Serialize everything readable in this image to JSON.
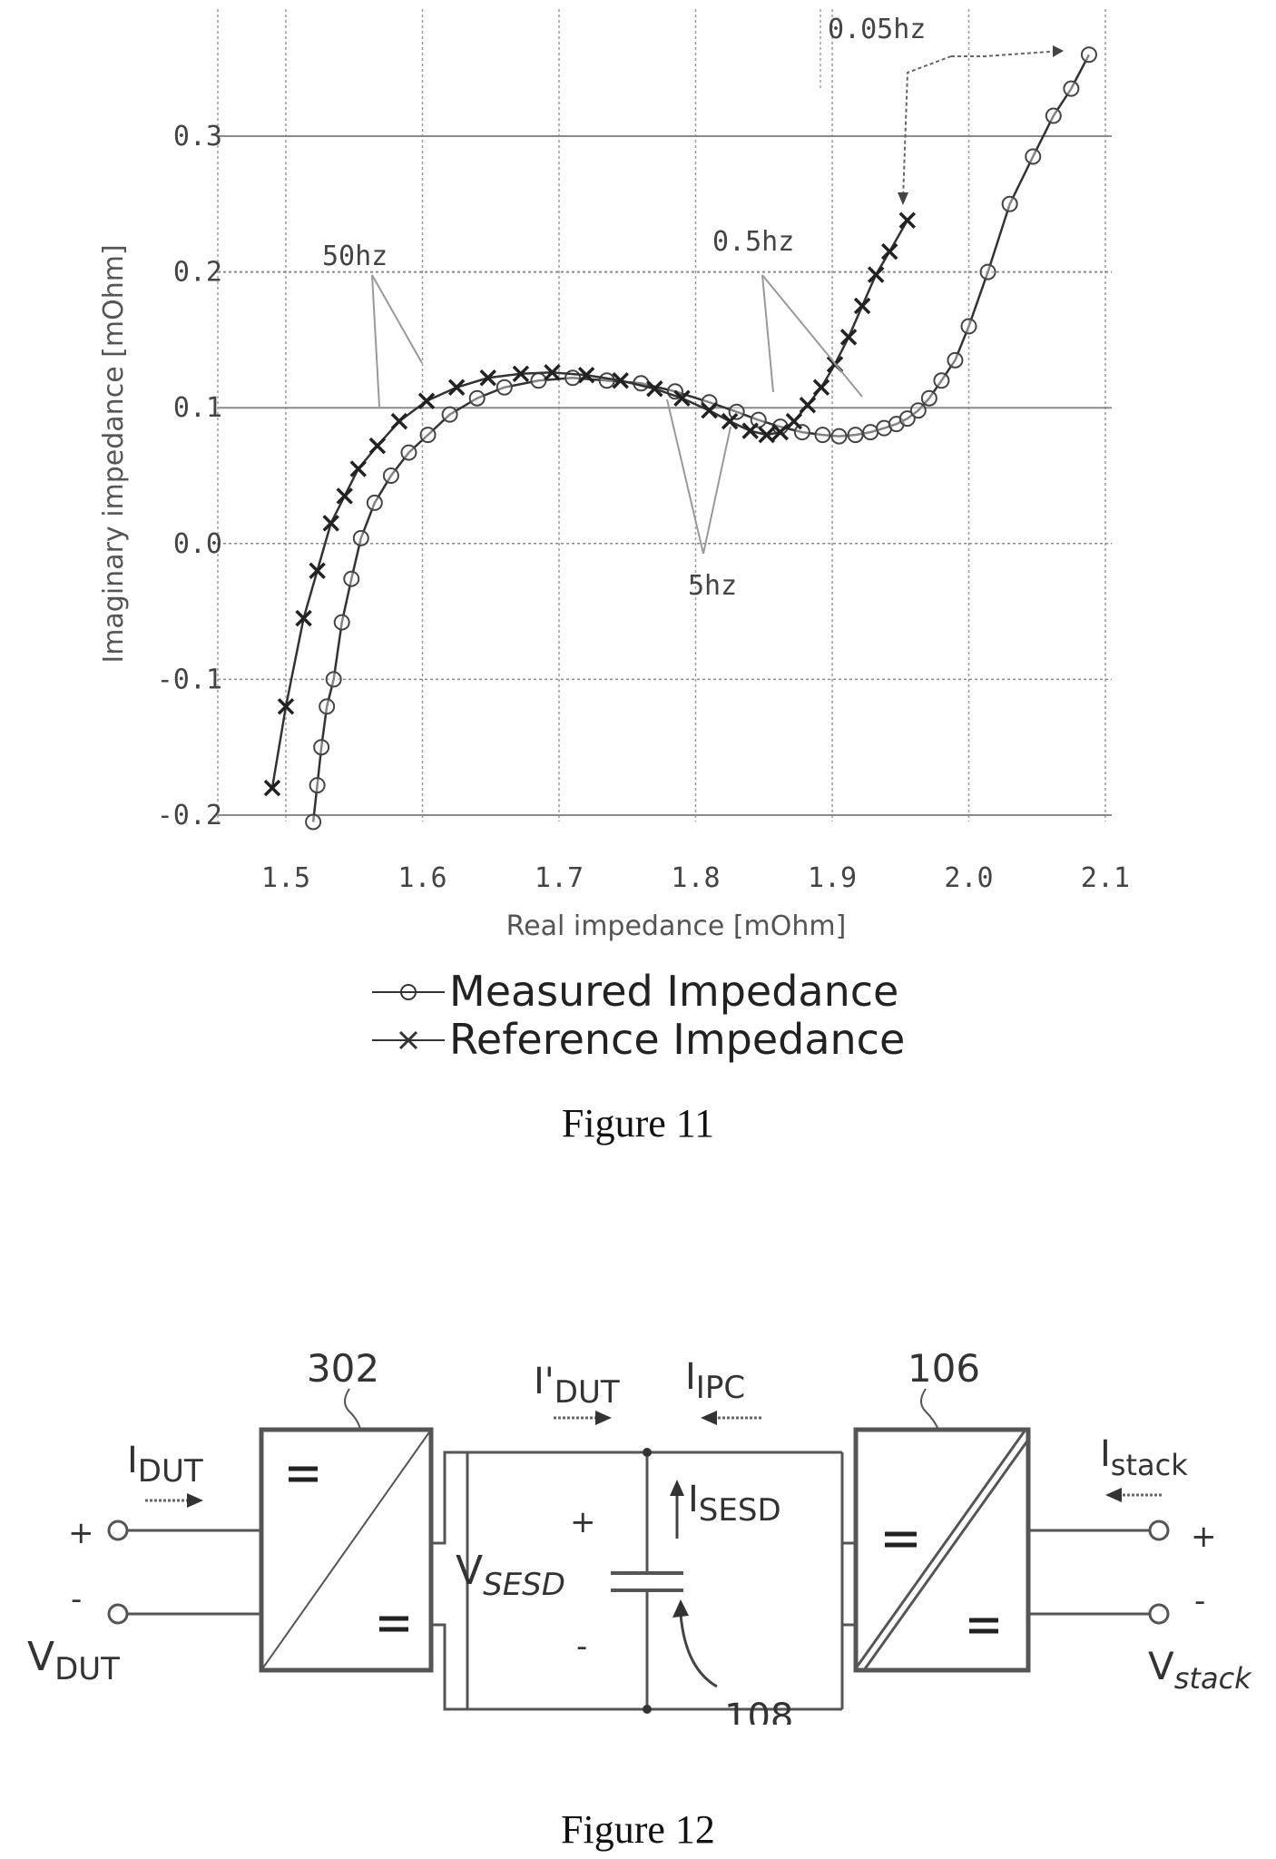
{
  "figure11": {
    "caption": "Figure 11",
    "chart_data": {
      "type": "scatter",
      "xlabel": "Real impedance [mOhm]",
      "ylabel": "Imaginary impedance [mOhm]",
      "xlim": [
        1.5,
        2.1
      ],
      "ylim": [
        -0.2,
        0.35
      ],
      "xticks": [
        1.5,
        1.6,
        1.7,
        1.8,
        1.9,
        2.0,
        2.1
      ],
      "xtick_labels": [
        "1.5",
        "1.6",
        "1.7",
        "1.8",
        "1.9",
        "2.0",
        "2.1"
      ],
      "yticks": [
        -0.2,
        -0.1,
        0.0,
        0.1,
        0.2,
        0.3
      ],
      "ytick_labels": [
        "-0.2",
        "-0.1",
        "0.0",
        "0.1",
        "0.2",
        "0.3"
      ],
      "grid": true,
      "legend_position": "bottom",
      "series": [
        {
          "name": "Measured Impedance",
          "marker": "circle",
          "x": [
            1.52,
            1.523,
            1.526,
            1.53,
            1.535,
            1.541,
            1.548,
            1.555,
            1.565,
            1.577,
            1.59,
            1.604,
            1.62,
            1.64,
            1.66,
            1.685,
            1.71,
            1.735,
            1.76,
            1.785,
            1.81,
            1.83,
            1.846,
            1.862,
            1.878,
            1.893,
            1.905,
            1.917,
            1.928,
            1.938,
            1.947,
            1.955,
            1.963,
            1.971,
            1.98,
            1.99,
            2.0,
            2.014,
            2.03,
            2.047,
            2.062,
            2.075,
            2.088
          ],
          "y": [
            -0.205,
            -0.178,
            -0.15,
            -0.12,
            -0.1,
            -0.058,
            -0.026,
            0.004,
            0.03,
            0.05,
            0.067,
            0.08,
            0.095,
            0.107,
            0.115,
            0.12,
            0.122,
            0.12,
            0.118,
            0.112,
            0.104,
            0.097,
            0.091,
            0.086,
            0.082,
            0.08,
            0.079,
            0.08,
            0.082,
            0.085,
            0.088,
            0.092,
            0.098,
            0.107,
            0.12,
            0.135,
            0.16,
            0.2,
            0.25,
            0.285,
            0.315,
            0.335,
            0.36
          ]
        },
        {
          "name": "Reference Impedance",
          "marker": "x",
          "x": [
            1.49,
            1.5,
            1.513,
            1.523,
            1.533,
            1.543,
            1.553,
            1.567,
            1.583,
            1.603,
            1.625,
            1.648,
            1.672,
            1.695,
            1.72,
            1.745,
            1.77,
            1.79,
            1.81,
            1.825,
            1.84,
            1.852,
            1.862,
            1.872,
            1.882,
            1.892,
            1.902,
            1.912,
            1.922,
            1.932,
            1.942,
            1.955
          ],
          "y": [
            -0.18,
            -0.12,
            -0.055,
            -0.02,
            0.015,
            0.035,
            0.055,
            0.072,
            0.09,
            0.105,
            0.115,
            0.122,
            0.125,
            0.126,
            0.124,
            0.12,
            0.114,
            0.107,
            0.098,
            0.09,
            0.083,
            0.08,
            0.082,
            0.09,
            0.102,
            0.115,
            0.132,
            0.152,
            0.175,
            0.198,
            0.215,
            0.238
          ]
        }
      ],
      "annotations": [
        {
          "text": "0.05hz"
        },
        {
          "text": "50hz"
        },
        {
          "text": "0.5hz"
        },
        {
          "text": "5hz"
        }
      ]
    }
  },
  "figure12": {
    "caption": "Figure 12",
    "labels": {
      "ref_302": "302",
      "ref_106": "106",
      "ref_108": "108",
      "i_dut_sym": "I",
      "i_dut_sub": "DUT",
      "v_dut_sym": "V",
      "v_dut_sub": "DUT",
      "i_prime_dut_sym": "I'",
      "i_prime_dut_sub": "DUT",
      "i_ipc_sym": "I",
      "i_ipc_sub": "IPC",
      "i_sesd_sym": "I",
      "i_sesd_sub": "SESD",
      "v_sesd_sym": "V",
      "v_sesd_sub": "SESD",
      "i_stack_sym": "I",
      "i_stack_sub": "stack",
      "v_stack_sym": "V",
      "v_stack_sub": "stack",
      "plus": "+",
      "minus": "-"
    }
  }
}
